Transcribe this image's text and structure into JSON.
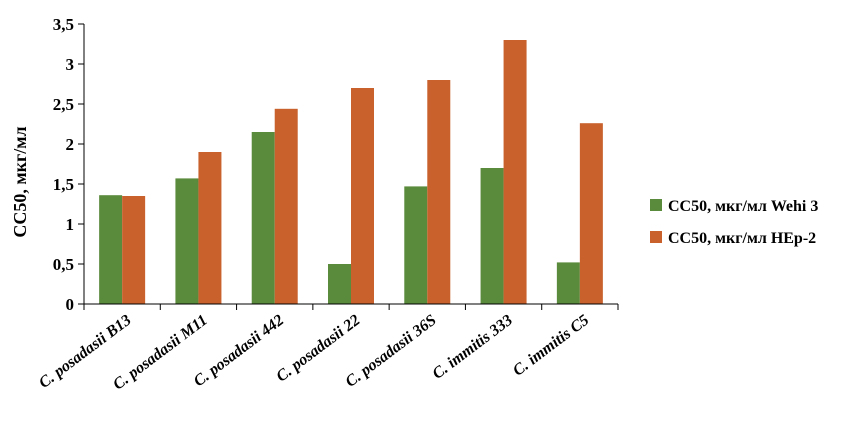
{
  "chart_data": {
    "type": "bar",
    "categories": [
      "C. posadasii B13",
      "C. posadasii M11",
      "C. posadasii 442",
      "C. posadasii 22",
      "C. posadasii 36S",
      "C. immitis 333",
      "C. immitis C5"
    ],
    "series": [
      {
        "name": "CC50, мкг/мл Wehi 3",
        "color": "#5a8a3c",
        "values": [
          1.36,
          1.57,
          2.15,
          0.5,
          1.47,
          1.7,
          0.52
        ]
      },
      {
        "name": "CC50, мкг/мл HEp-2",
        "color": "#c9612d",
        "values": [
          1.35,
          1.9,
          2.44,
          2.7,
          2.8,
          3.3,
          2.26
        ]
      }
    ],
    "ylabel": "CC50, мкг/мл",
    "ylim": [
      0,
      3.5
    ],
    "yticks": [
      "0",
      "0,5",
      "1",
      "1,5",
      "2",
      "2,5",
      "3",
      "3,5"
    ],
    "grid": false,
    "legend_position": "right"
  }
}
